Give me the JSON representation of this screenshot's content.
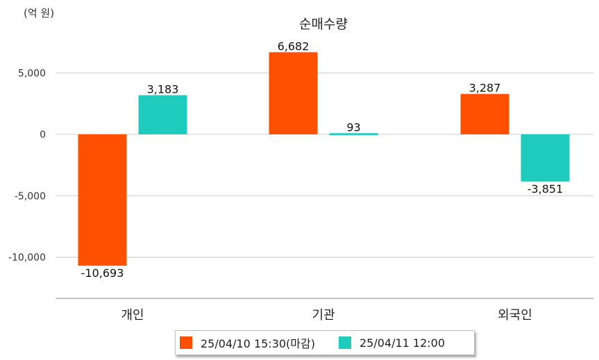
{
  "chart_data": {
    "type": "bar",
    "title": "순매수량",
    "unit_label": "(억 원)",
    "categories": [
      "개인",
      "기관",
      "외국인"
    ],
    "series": [
      {
        "name": "25/04/10 15:30(마감)",
        "color": "#ff5000",
        "values": [
          -10693,
          6682,
          3287
        ],
        "labels": [
          "-10,693",
          "6,682",
          "3,287"
        ]
      },
      {
        "name": "25/04/11 12:00",
        "color": "#1ecbbd",
        "values": [
          3183,
          93,
          -3851
        ],
        "labels": [
          "3,183",
          "93",
          "-3,851"
        ]
      }
    ],
    "y_ticks": [
      5000,
      0,
      -5000,
      -10000
    ],
    "y_tick_labels": [
      "5,000",
      "0",
      "-5,000",
      "-10,000"
    ],
    "ylim": [
      -13500,
      9800
    ],
    "grid": true,
    "legend_position": "bottom"
  }
}
